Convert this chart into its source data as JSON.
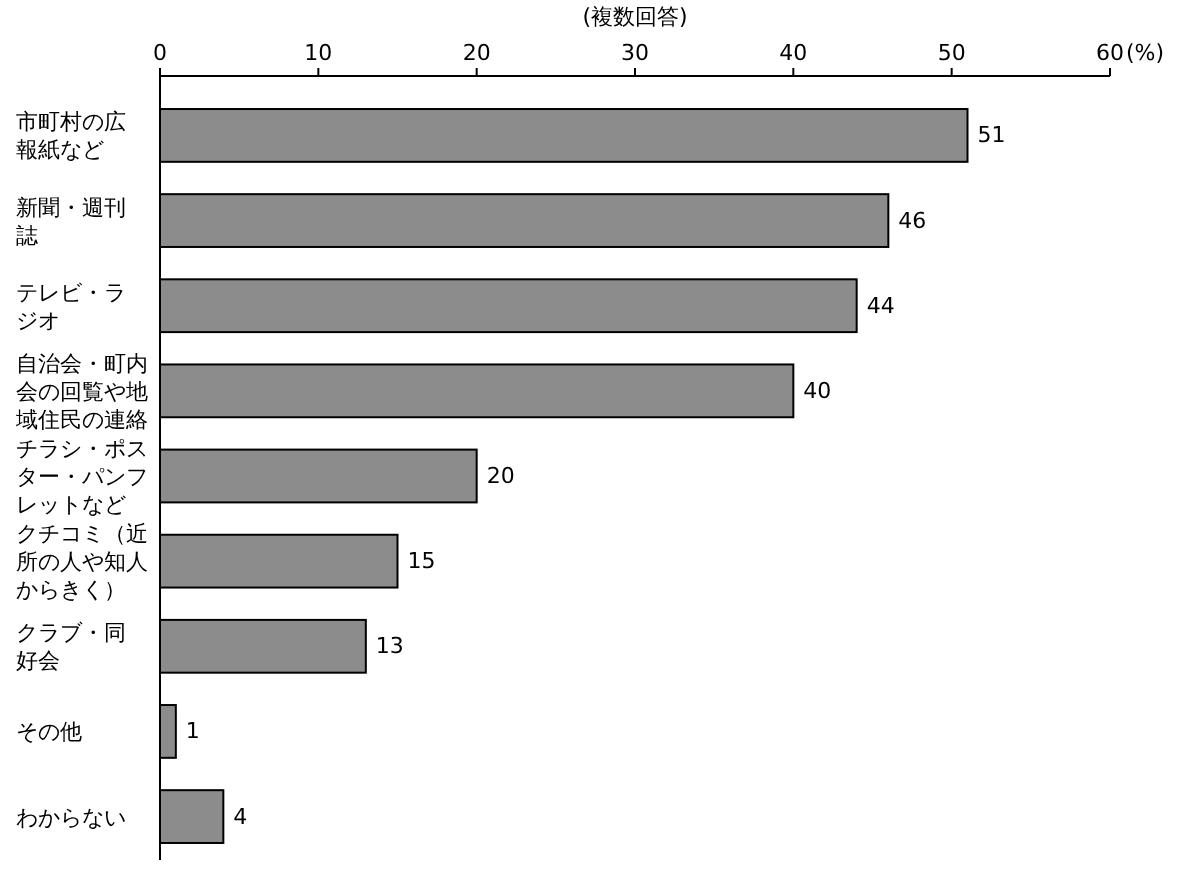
{
  "chart_data": {
    "type": "bar",
    "orientation": "horizontal",
    "title": "(複数回答)",
    "xlabel": "(%)",
    "categories": [
      "市町村の広報紙など",
      "新聞・週刊誌",
      "テレビ・ラジオ",
      "自治会・町内会の回覧や地域住民の連絡",
      "チラシ・ポスター・パンフレットなど",
      "クチコミ（近所の人や知人からきく）",
      "クラブ・同好会",
      "その他",
      "わからない"
    ],
    "values": [
      51,
      46,
      44,
      40,
      20,
      15,
      13,
      1,
      4
    ],
    "color": "#8c8c8c",
    "xlim": [
      0,
      60
    ],
    "xticks": [
      0,
      10,
      20,
      30,
      40,
      50,
      60
    ],
    "data_labels": true
  }
}
